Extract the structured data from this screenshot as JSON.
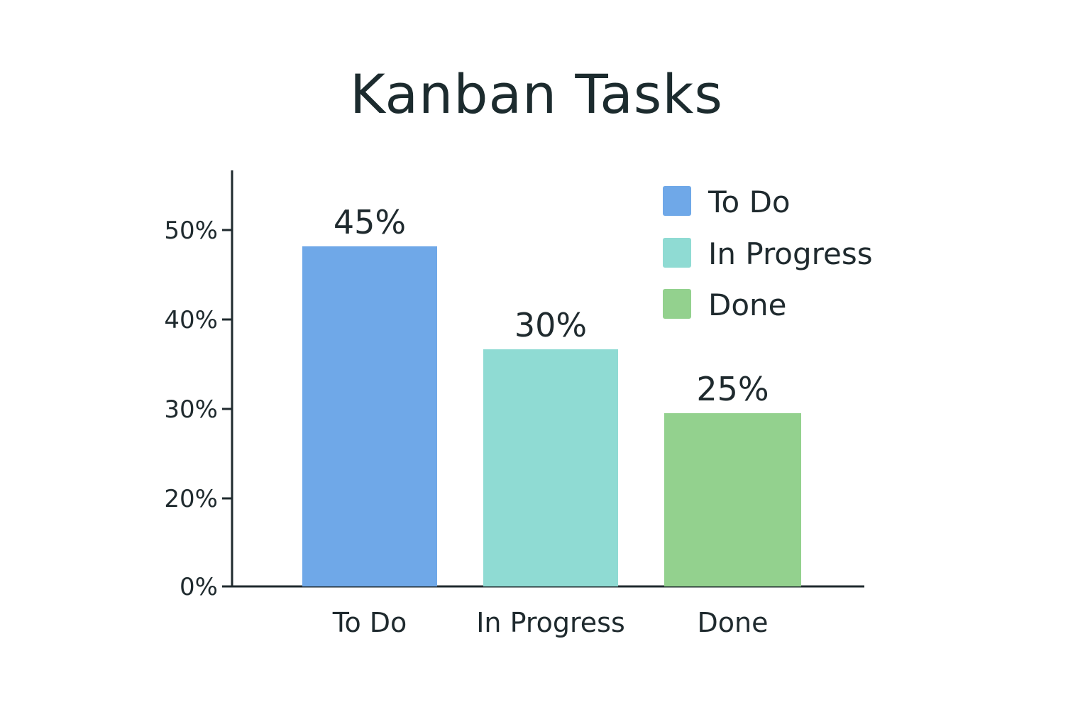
{
  "chart_data": {
    "type": "bar",
    "title": "Kanban Tasks",
    "xlabel": "",
    "ylabel": "",
    "categories": [
      "To Do",
      "In Progress",
      "Done"
    ],
    "values": [
      45,
      30,
      25
    ],
    "data_labels": [
      "45%",
      "30%",
      "25%"
    ],
    "colors": [
      "#6fa8e8",
      "#8fdbd3",
      "#93d18e"
    ],
    "yticks": [
      0,
      20,
      30,
      40,
      50
    ],
    "ytick_labels": [
      "0%",
      "20%",
      "30%",
      "40%",
      "50%"
    ],
    "ylim": [
      0,
      55
    ],
    "grid": false,
    "legend": {
      "placement": "top-right",
      "entries": [
        "To Do",
        "In Progress",
        "Done"
      ]
    }
  }
}
